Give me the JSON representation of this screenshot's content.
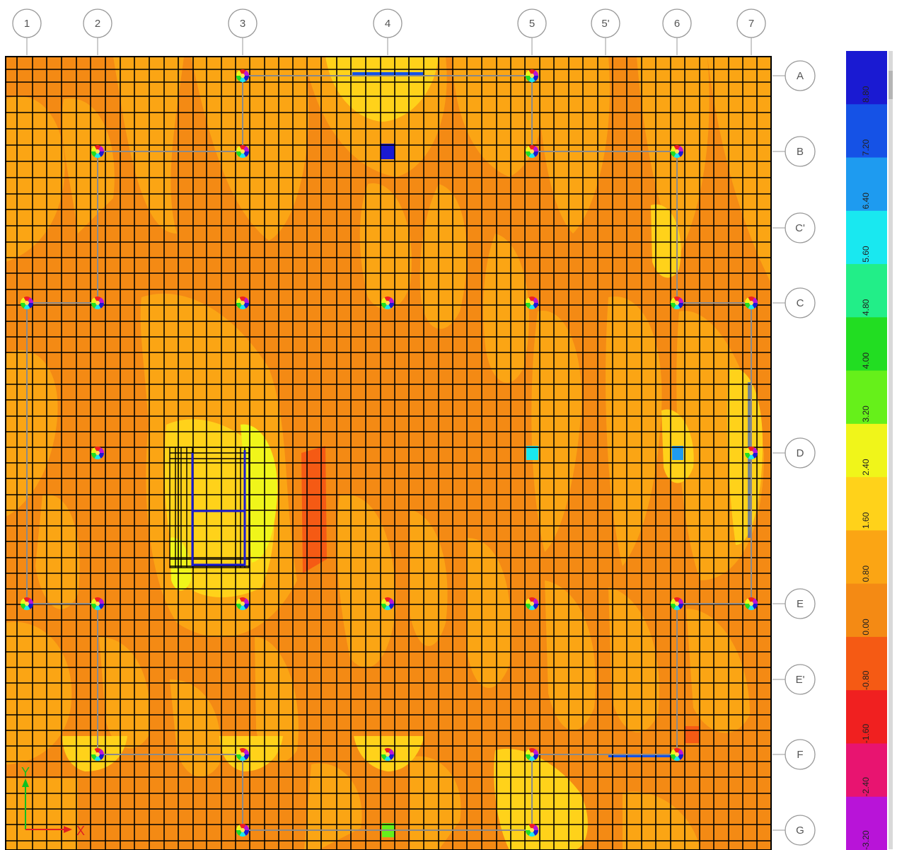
{
  "grid": {
    "columns": [
      "1",
      "2",
      "3",
      "4",
      "5",
      "5'",
      "6",
      "7"
    ],
    "rows": [
      "A",
      "B",
      "C'",
      "C",
      "D",
      "E",
      "E'",
      "F",
      "G"
    ]
  },
  "legend": {
    "levels": [
      {
        "label": "8.80",
        "color": "#1a1ad2"
      },
      {
        "label": "7.20",
        "color": "#1552e6"
      },
      {
        "label": "6.40",
        "color": "#1e9bf0"
      },
      {
        "label": "5.60",
        "color": "#19e8f0"
      },
      {
        "label": "4.80",
        "color": "#22ee88"
      },
      {
        "label": "4.00",
        "color": "#22dd22"
      },
      {
        "label": "3.20",
        "color": "#66f01a"
      },
      {
        "label": "2.40",
        "color": "#f0f51a"
      },
      {
        "label": "1.60",
        "color": "#ffd21a"
      },
      {
        "label": "0.80",
        "color": "#fba514"
      },
      {
        "label": "0.00",
        "color": "#f48a14"
      },
      {
        "label": "-0.80",
        "color": "#f55a14"
      },
      {
        "label": "-1.60",
        "color": "#f02020"
      },
      {
        "label": "-2.40",
        "color": "#e81470"
      },
      {
        "label": "-3.20",
        "color": "#b814d8"
      }
    ]
  },
  "axes": {
    "x_label": "X",
    "y_label": "Y"
  },
  "colors": {
    "base": "#f48a14",
    "light": "#fba514",
    "yellow": "#ffd21a",
    "bright_yellow": "#f0f51a",
    "red_orange": "#f55a14",
    "red": "#f02020",
    "blue": "#1a1ad2",
    "cyan": "#19e8f0"
  }
}
